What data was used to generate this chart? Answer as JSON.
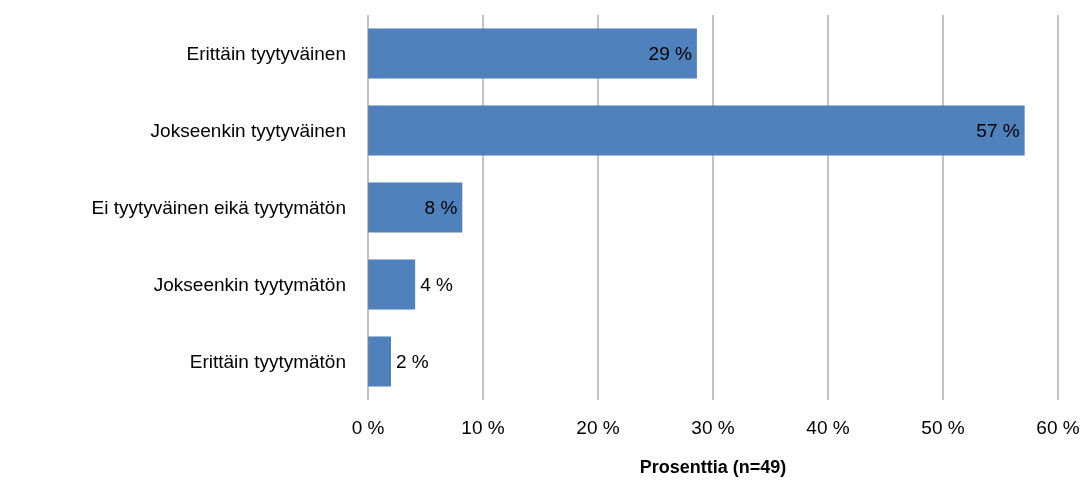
{
  "chart_data": {
    "type": "bar",
    "orientation": "horizontal",
    "xlabel": "Prosenttia (n=49)",
    "categories": [
      "Erittäin tyytyväinen",
      "Jokseenkin tyytyväinen",
      "Ei tyytyväinen eikä tyytymätön",
      "Jokseenkin tyytymätön",
      "Erittäin tyytymätön"
    ],
    "values": [
      28.6,
      57.1,
      8.2,
      4.1,
      2.0
    ],
    "value_labels": [
      "29 %",
      "57 %",
      "8 %",
      "4 %",
      "2 %"
    ],
    "color": "#4f81bd",
    "xlim": [
      0,
      60
    ],
    "xticks": [
      {
        "value": 0,
        "label": "0 %"
      },
      {
        "value": 10,
        "label": "10 %"
      },
      {
        "value": 20,
        "label": "20 %"
      },
      {
        "value": 30,
        "label": "30 %"
      },
      {
        "value": 40,
        "label": "40 %"
      },
      {
        "value": 50,
        "label": "50 %"
      },
      {
        "value": 60,
        "label": "60 %"
      }
    ],
    "grid": "x"
  }
}
